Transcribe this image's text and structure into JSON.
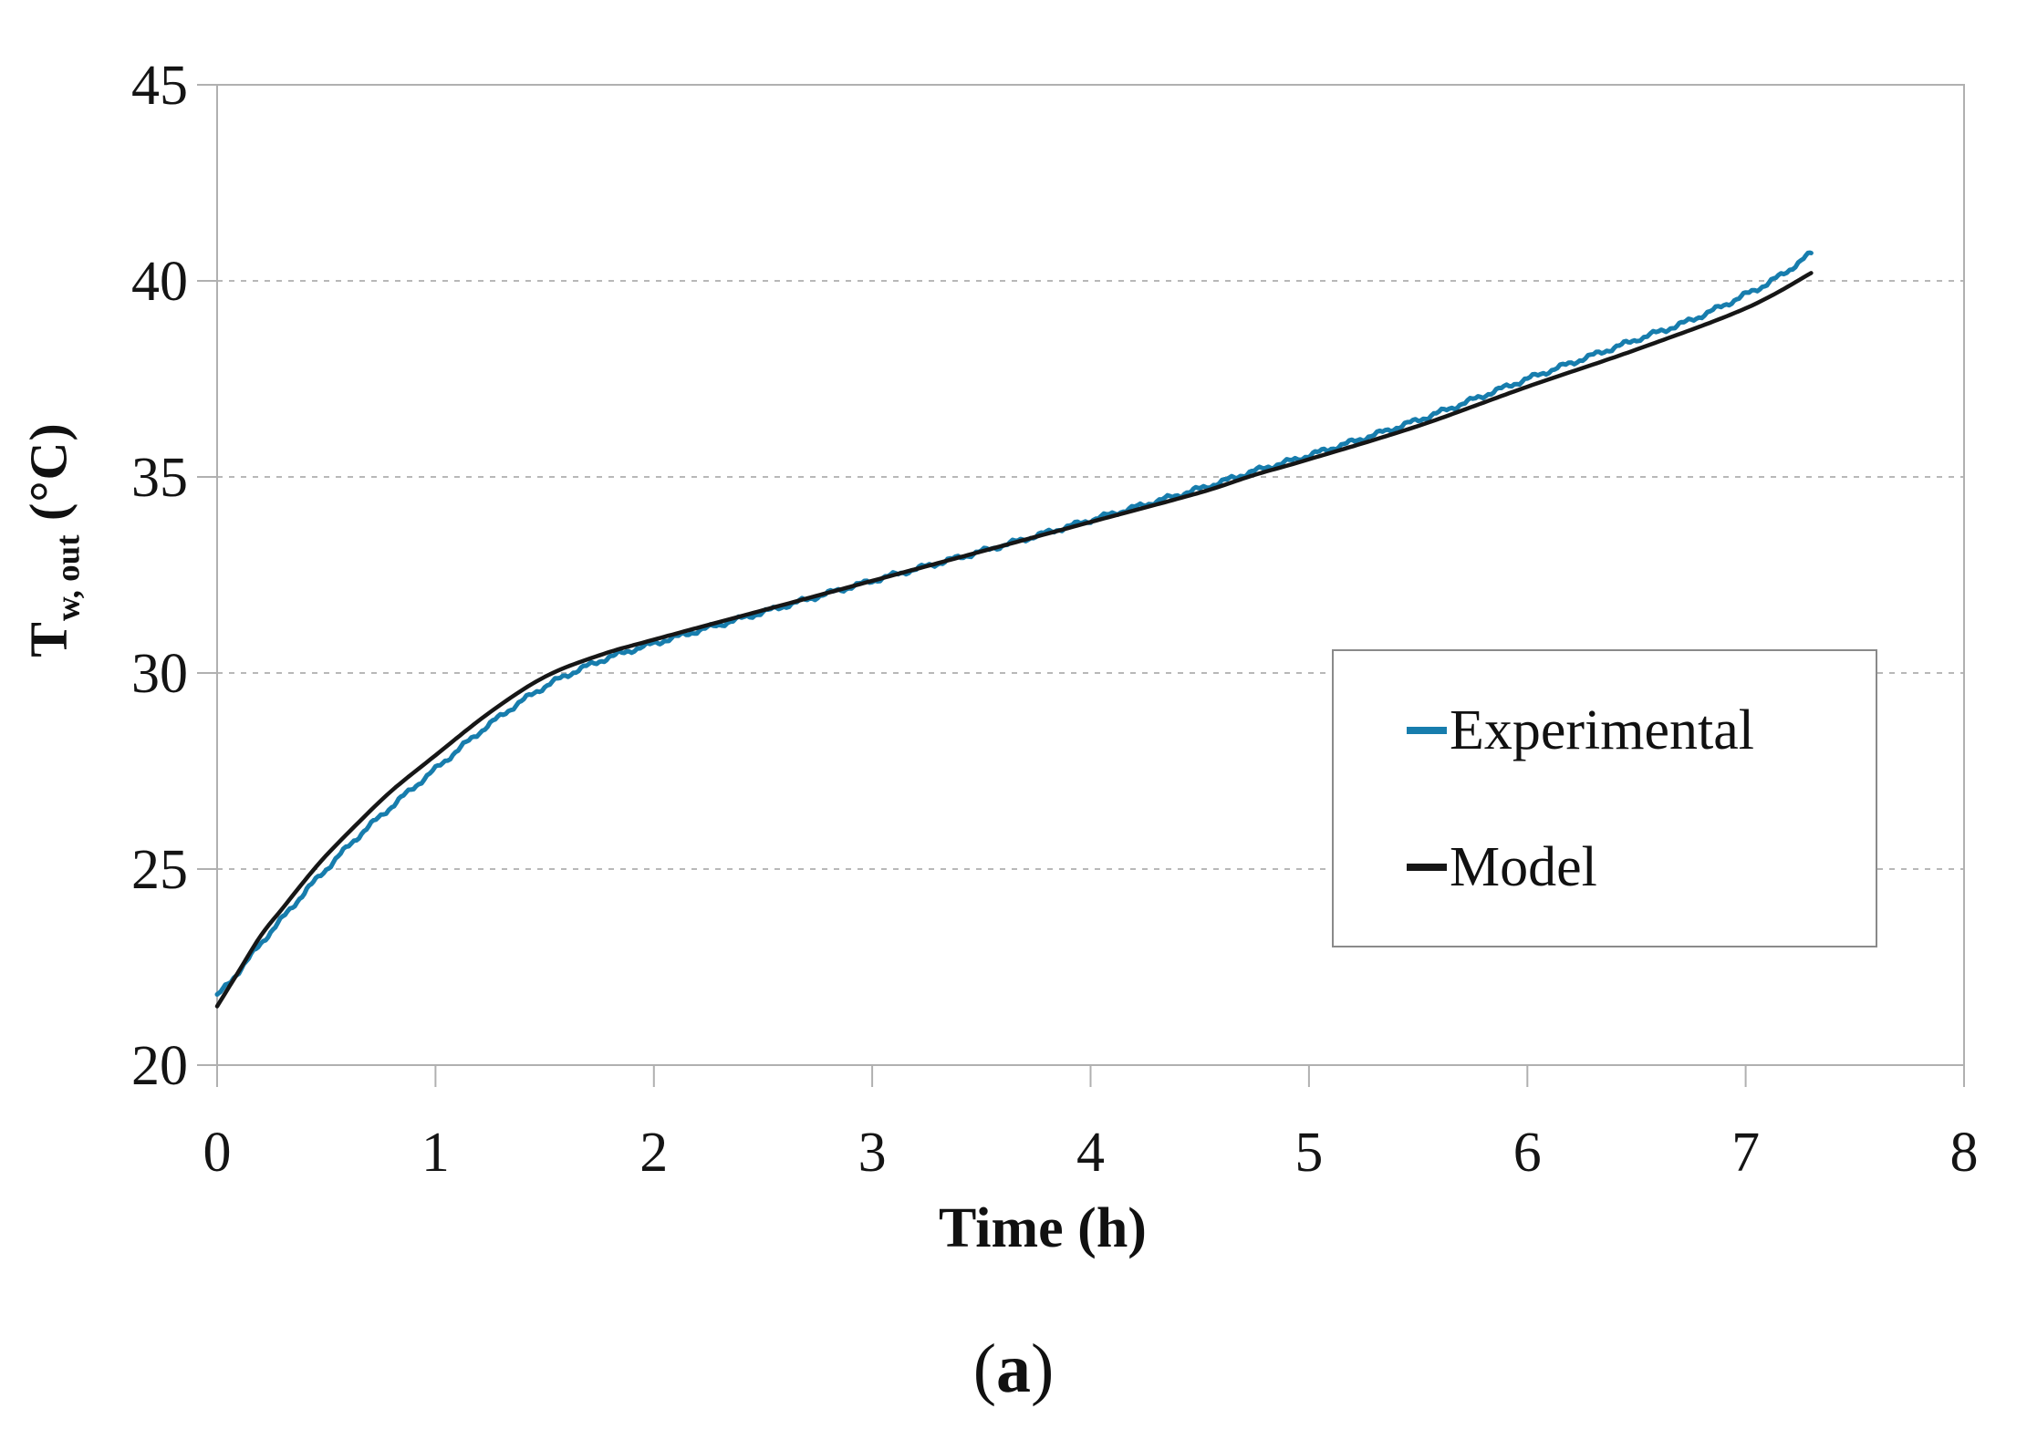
{
  "figure": {
    "y_axis_title": {
      "base": "T",
      "subscript": "w, out",
      "unit": " (°C)"
    },
    "x_axis_title": "Time (h)",
    "caption": {
      "open": "(",
      "letter": "a",
      "close": ")"
    }
  },
  "legend": {
    "position": "right-middle",
    "items": [
      {
        "label": "Experimental",
        "color": "#177dad"
      },
      {
        "label": "Model",
        "color": "#161616"
      }
    ]
  },
  "colors": {
    "background": "#ffffff",
    "plot_border": "#b0b0b0",
    "gridline": "#b8b8b8",
    "tick": "#b0b0b0",
    "text": "#141414",
    "experimental_line": "#177dad",
    "model_line": "#161616",
    "legend_border": "#8a8a8a"
  },
  "chart_data": {
    "type": "line",
    "title": "",
    "xlabel": "Time (h)",
    "ylabel": "T_w,out (°C)",
    "xlim": [
      0,
      8
    ],
    "ylim": [
      20,
      45
    ],
    "x_ticks": [
      0,
      1,
      2,
      3,
      4,
      5,
      6,
      7,
      8
    ],
    "y_ticks": [
      20,
      25,
      30,
      35,
      40,
      45
    ],
    "grid": {
      "y_values": [
        25,
        30,
        35,
        40
      ],
      "style": "dashed",
      "color": "#b8b8b8"
    },
    "legend_position": "right-middle",
    "series": [
      {
        "name": "Experimental",
        "color": "#177dad",
        "line_width": 5,
        "sample_step": 0.012,
        "noise": {
          "components": [
            {
              "amp": 0.045,
              "freq": 45,
              "phase": 0.7
            },
            {
              "amp": 0.028,
              "freq": 150,
              "phase": 2.1
            }
          ]
        },
        "points": [
          [
            0.0,
            21.75
          ],
          [
            0.1,
            22.4
          ],
          [
            0.2,
            23.1
          ],
          [
            0.3,
            23.75
          ],
          [
            0.4,
            24.4
          ],
          [
            0.5,
            25.0
          ],
          [
            0.65,
            25.85
          ],
          [
            0.8,
            26.6
          ],
          [
            1.0,
            27.55
          ],
          [
            1.25,
            28.7
          ],
          [
            1.5,
            29.65
          ],
          [
            1.75,
            30.3
          ],
          [
            2.0,
            30.75
          ],
          [
            2.5,
            31.55
          ],
          [
            3.0,
            32.35
          ],
          [
            3.5,
            33.1
          ],
          [
            4.0,
            33.9
          ],
          [
            4.5,
            34.7
          ],
          [
            4.75,
            35.15
          ],
          [
            5.0,
            35.55
          ],
          [
            5.5,
            36.45
          ],
          [
            6.0,
            37.5
          ],
          [
            6.5,
            38.5
          ],
          [
            6.75,
            39.0
          ],
          [
            7.0,
            39.65
          ],
          [
            7.15,
            40.1
          ],
          [
            7.3,
            40.7
          ]
        ]
      },
      {
        "name": "Model",
        "color": "#161616",
        "line_width": 4.5,
        "sample_step": 0.02,
        "points": [
          [
            0.0,
            21.5
          ],
          [
            0.1,
            22.4
          ],
          [
            0.2,
            23.3
          ],
          [
            0.3,
            24.0
          ],
          [
            0.4,
            24.7
          ],
          [
            0.5,
            25.35
          ],
          [
            0.65,
            26.2
          ],
          [
            0.8,
            27.0
          ],
          [
            1.0,
            27.9
          ],
          [
            1.25,
            29.0
          ],
          [
            1.5,
            29.9
          ],
          [
            1.75,
            30.45
          ],
          [
            2.0,
            30.85
          ],
          [
            2.5,
            31.6
          ],
          [
            3.0,
            32.35
          ],
          [
            3.5,
            33.1
          ],
          [
            4.0,
            33.85
          ],
          [
            4.5,
            34.6
          ],
          [
            4.75,
            35.05
          ],
          [
            5.0,
            35.45
          ],
          [
            5.5,
            36.3
          ],
          [
            6.0,
            37.3
          ],
          [
            6.5,
            38.25
          ],
          [
            7.0,
            39.3
          ],
          [
            7.3,
            40.2
          ]
        ]
      }
    ]
  }
}
